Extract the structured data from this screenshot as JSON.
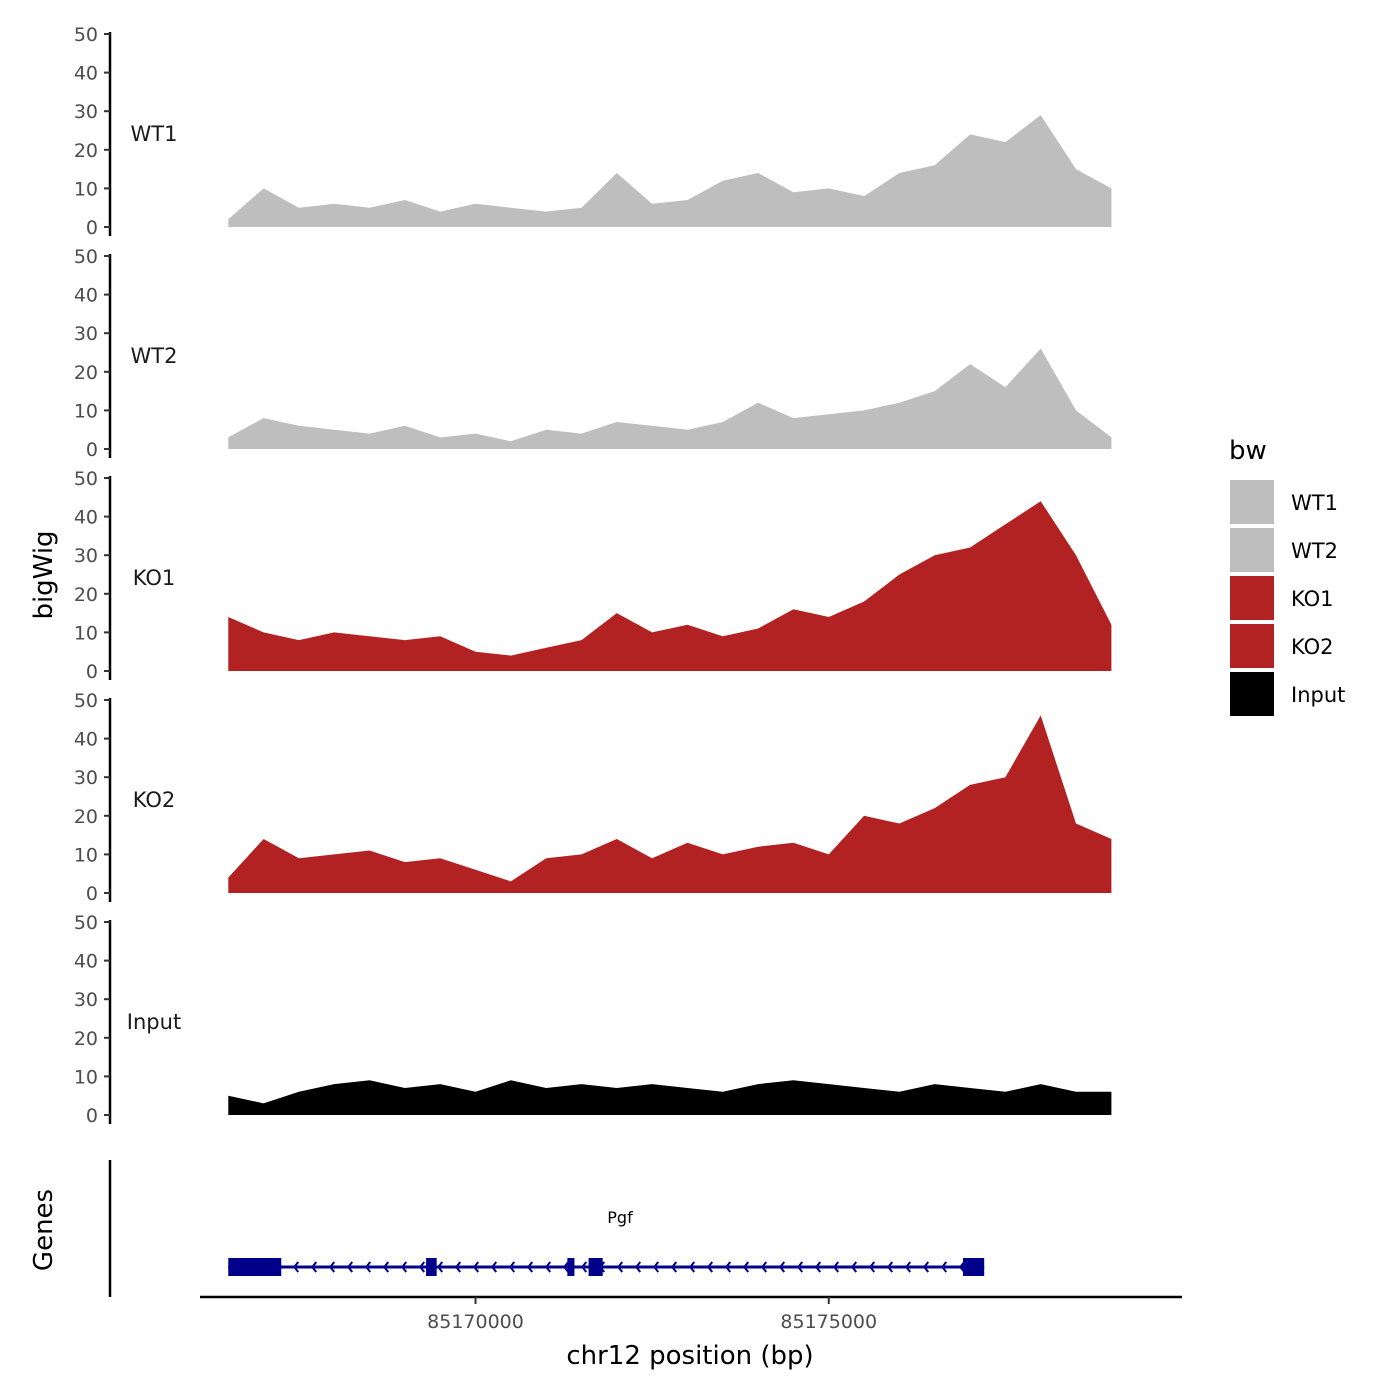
{
  "chart_data": {
    "type": "area",
    "title": "",
    "xlabel": "chr12 position (bp)",
    "ylabel": "bigWig",
    "genes_label": "Genes",
    "xlim": [
      85166100,
      85180000
    ],
    "ylim": [
      0,
      50
    ],
    "x_ticks": [
      85170000,
      85175000
    ],
    "x_tick_labels": [
      "85170000",
      "85175000"
    ],
    "y_ticks": [
      0,
      10,
      20,
      30,
      40,
      50
    ],
    "y_tick_labels": [
      "0",
      "10",
      "20",
      "30",
      "40",
      "50"
    ],
    "grid": false,
    "legend": {
      "title": "bw",
      "placement": "right"
    },
    "x": [
      85166500,
      85167000,
      85167500,
      85168000,
      85168500,
      85169000,
      85169500,
      85170000,
      85170500,
      85171000,
      85171500,
      85172000,
      85172500,
      85173000,
      85173500,
      85174000,
      85174500,
      85175000,
      85175500,
      85176000,
      85176500,
      85177000,
      85177500,
      85178000,
      85178500,
      85179000
    ],
    "series": [
      {
        "name": "WT1",
        "color": "#bebebe",
        "values": [
          2,
          10,
          5,
          6,
          5,
          7,
          4,
          6,
          5,
          4,
          5,
          14,
          6,
          7,
          12,
          14,
          9,
          10,
          8,
          14,
          16,
          24,
          22,
          29,
          15,
          10
        ]
      },
      {
        "name": "WT2",
        "color": "#bebebe",
        "values": [
          3,
          8,
          6,
          5,
          4,
          6,
          3,
          4,
          2,
          5,
          4,
          7,
          6,
          5,
          7,
          12,
          8,
          9,
          10,
          12,
          15,
          22,
          16,
          26,
          10,
          3
        ]
      },
      {
        "name": "KO1",
        "color": "#b22222",
        "values": [
          14,
          10,
          8,
          10,
          9,
          8,
          9,
          5,
          4,
          6,
          8,
          15,
          10,
          12,
          9,
          11,
          16,
          14,
          18,
          25,
          30,
          32,
          38,
          44,
          30,
          12
        ]
      },
      {
        "name": "KO2",
        "color": "#b22222",
        "values": [
          4,
          14,
          9,
          10,
          11,
          8,
          9,
          6,
          3,
          9,
          10,
          14,
          9,
          13,
          10,
          12,
          13,
          10,
          20,
          18,
          22,
          28,
          30,
          46,
          18,
          14
        ]
      },
      {
        "name": "Input",
        "color": "#000000",
        "values": [
          5,
          3,
          6,
          8,
          9,
          7,
          8,
          6,
          9,
          7,
          8,
          7,
          8,
          7,
          6,
          8,
          9,
          8,
          7,
          6,
          8,
          7,
          6,
          8,
          6,
          6
        ]
      }
    ],
    "gene_track": {
      "name": "Pgf",
      "color": "#00008b",
      "strand": "-",
      "start": 85166500,
      "end": 85177200,
      "exons": [
        [
          85166500,
          85167250
        ],
        [
          85169300,
          85169450
        ],
        [
          85171300,
          85171400
        ],
        [
          85171600,
          85171800
        ],
        [
          85176900,
          85177200
        ]
      ]
    }
  }
}
